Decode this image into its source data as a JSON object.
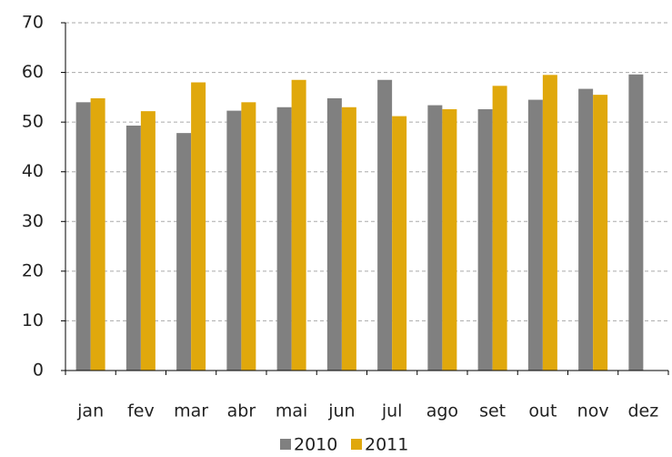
{
  "chart_data": {
    "type": "bar",
    "categories": [
      "jan",
      "fev",
      "mar",
      "abr",
      "mai",
      "jun",
      "jul",
      "ago",
      "set",
      "out",
      "nov",
      "dez"
    ],
    "series": [
      {
        "name": "2010",
        "color": "#808080",
        "values": [
          54,
          49.3,
          47.8,
          52.3,
          53,
          54.8,
          58.5,
          53.4,
          52.6,
          54.5,
          56.7,
          59.6
        ]
      },
      {
        "name": "2011",
        "color": "#e0a80c",
        "values": [
          54.8,
          52.2,
          58,
          54,
          58.5,
          53,
          51.2,
          52.6,
          57.3,
          59.5,
          55.5,
          null
        ]
      }
    ],
    "ylim": [
      0,
      70
    ],
    "yticks": [
      0,
      10,
      20,
      30,
      40,
      50,
      60,
      70
    ],
    "grid": true,
    "legend": "bottom"
  }
}
